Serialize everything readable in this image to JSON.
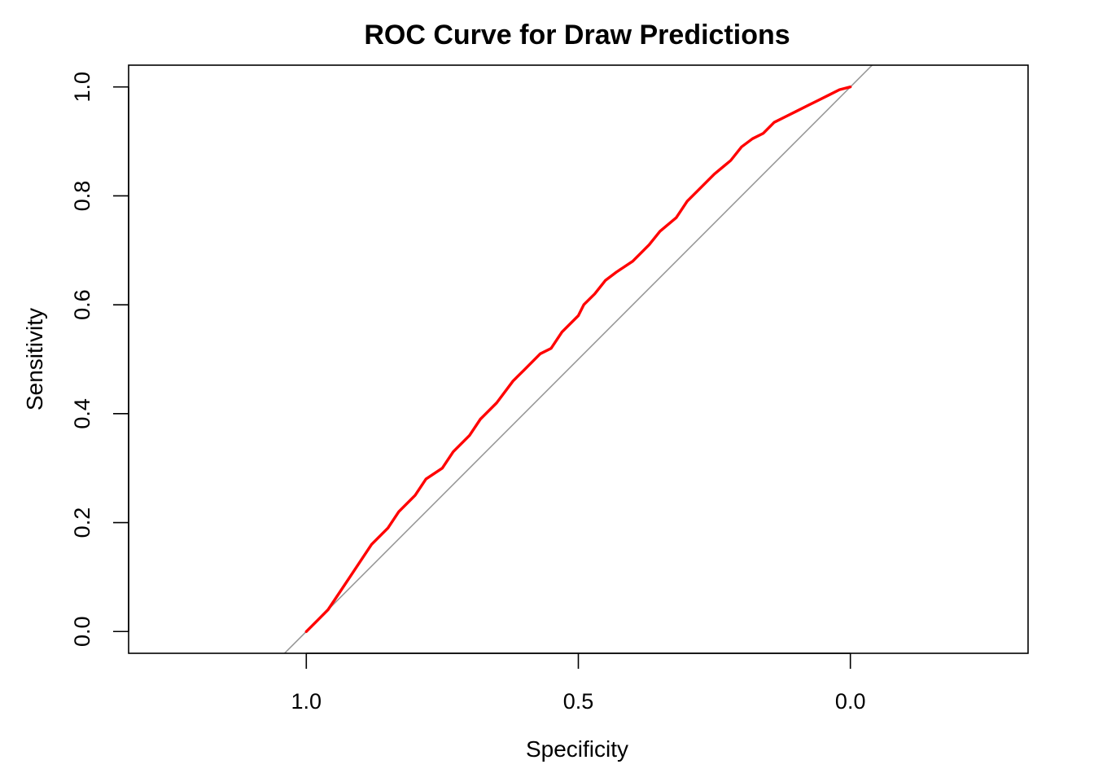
{
  "chart_data": {
    "type": "line",
    "title": "ROC Curve for Draw Predictions",
    "xlabel": "Specificity",
    "ylabel": "Sensitivity",
    "x_reversed": true,
    "xlim": [
      1.3266,
      -0.3266
    ],
    "ylim": [
      -0.04,
      1.04
    ],
    "xticks": [
      1.0,
      0.5,
      0.0
    ],
    "xtick_labels": [
      "1.0",
      "0.5",
      "0.0"
    ],
    "yticks": [
      0.0,
      0.2,
      0.4,
      0.6,
      0.8,
      1.0
    ],
    "ytick_labels": [
      "0.0",
      "0.2",
      "0.4",
      "0.6",
      "0.8",
      "1.0"
    ],
    "grid": false,
    "colors": {
      "roc": "#ff0000",
      "reference": "#999999",
      "frame": "#000000"
    },
    "reference_line": {
      "description": "chance diagonal",
      "intercept": 1,
      "slope": -1
    },
    "series": [
      {
        "x": [
          1.0,
          0.98,
          0.96,
          0.94,
          0.92,
          0.9,
          0.88,
          0.85,
          0.83,
          0.8,
          0.78,
          0.75,
          0.73,
          0.7,
          0.68,
          0.65,
          0.62,
          0.6,
          0.57,
          0.55,
          0.53,
          0.5,
          0.49,
          0.47,
          0.45,
          0.43,
          0.4,
          0.37,
          0.35,
          0.32,
          0.3,
          0.28,
          0.25,
          0.22,
          0.2,
          0.18,
          0.16,
          0.14,
          0.12,
          0.1,
          0.08,
          0.06,
          0.04,
          0.02,
          0.0
        ],
        "y": [
          0.0,
          0.02,
          0.04,
          0.07,
          0.1,
          0.13,
          0.16,
          0.19,
          0.22,
          0.25,
          0.28,
          0.3,
          0.33,
          0.36,
          0.39,
          0.42,
          0.46,
          0.48,
          0.51,
          0.52,
          0.55,
          0.58,
          0.6,
          0.62,
          0.645,
          0.66,
          0.68,
          0.71,
          0.735,
          0.76,
          0.79,
          0.81,
          0.84,
          0.865,
          0.89,
          0.905,
          0.915,
          0.935,
          0.945,
          0.955,
          0.965,
          0.975,
          0.985,
          0.995,
          1.0
        ]
      }
    ]
  }
}
